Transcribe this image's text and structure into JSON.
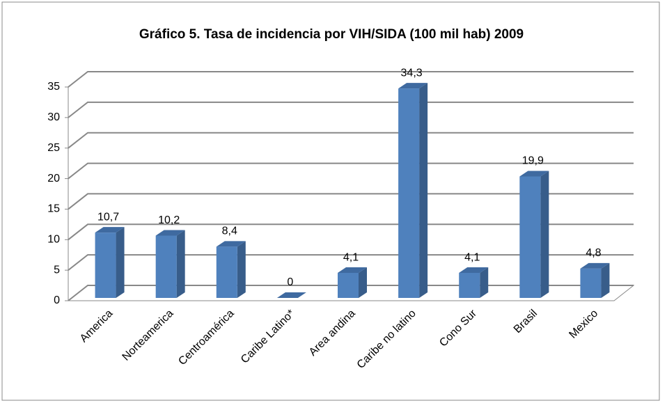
{
  "chart_data": {
    "type": "bar3d",
    "title": "Gráfico 5. Tasa de incidencia por VIH/SIDA (100 mil hab) 2009",
    "categories": [
      "America",
      "Norteamerica",
      "Centroamérica",
      "Caribe Latino*",
      "Area andina",
      "Caribe no latino",
      "Cono Sur",
      "Brasil",
      "Mexico"
    ],
    "values": [
      10.7,
      10.2,
      8.4,
      0,
      4.1,
      34.3,
      4.1,
      19.9,
      4.8
    ],
    "value_labels": [
      "10,7",
      "10,2",
      "8,4",
      "0",
      "4,1",
      "34,3",
      "4,1",
      "19,9",
      "4,8"
    ],
    "color": "#4f81bd",
    "ylim": [
      0,
      35
    ],
    "yticks": [
      0,
      5,
      10,
      15,
      20,
      25,
      30,
      35
    ],
    "grid": true
  }
}
